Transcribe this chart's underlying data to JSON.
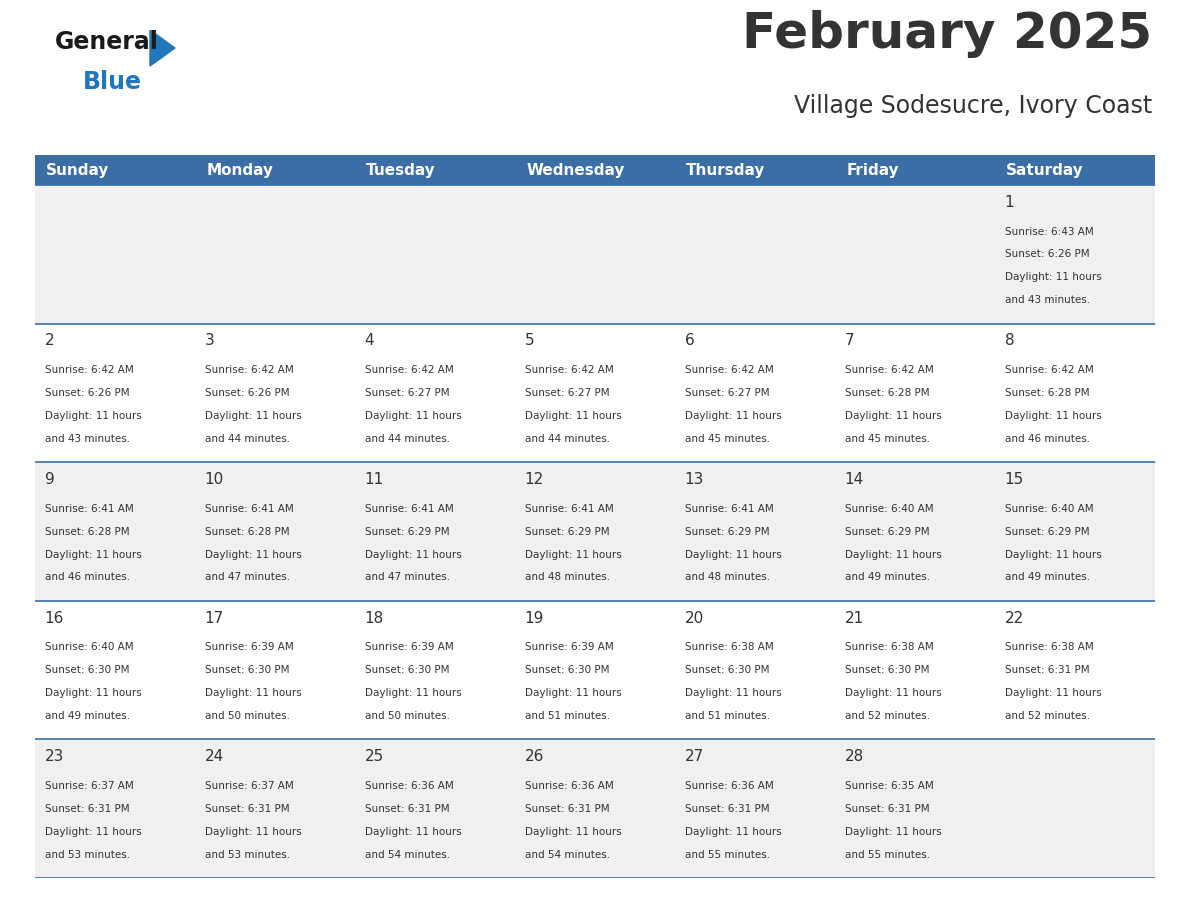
{
  "title": "February 2025",
  "subtitle": "Village Sodesucre, Ivory Coast",
  "header_bg": "#3a6ea5",
  "header_text_color": "#ffffff",
  "grid_line_color": "#3a6ea5",
  "day_headers": [
    "Sunday",
    "Monday",
    "Tuesday",
    "Wednesday",
    "Thursday",
    "Friday",
    "Saturday"
  ],
  "bg_color": "#ffffff",
  "alt_row_color": "#f0f0f0",
  "cell_text_color": "#333333",
  "days": [
    {
      "day": 1,
      "col": 6,
      "row": 0,
      "sunrise": "6:43 AM",
      "sunset": "6:26 PM",
      "daylight_hours": 11,
      "daylight_minutes": 43
    },
    {
      "day": 2,
      "col": 0,
      "row": 1,
      "sunrise": "6:42 AM",
      "sunset": "6:26 PM",
      "daylight_hours": 11,
      "daylight_minutes": 43
    },
    {
      "day": 3,
      "col": 1,
      "row": 1,
      "sunrise": "6:42 AM",
      "sunset": "6:26 PM",
      "daylight_hours": 11,
      "daylight_minutes": 44
    },
    {
      "day": 4,
      "col": 2,
      "row": 1,
      "sunrise": "6:42 AM",
      "sunset": "6:27 PM",
      "daylight_hours": 11,
      "daylight_minutes": 44
    },
    {
      "day": 5,
      "col": 3,
      "row": 1,
      "sunrise": "6:42 AM",
      "sunset": "6:27 PM",
      "daylight_hours": 11,
      "daylight_minutes": 44
    },
    {
      "day": 6,
      "col": 4,
      "row": 1,
      "sunrise": "6:42 AM",
      "sunset": "6:27 PM",
      "daylight_hours": 11,
      "daylight_minutes": 45
    },
    {
      "day": 7,
      "col": 5,
      "row": 1,
      "sunrise": "6:42 AM",
      "sunset": "6:28 PM",
      "daylight_hours": 11,
      "daylight_minutes": 45
    },
    {
      "day": 8,
      "col": 6,
      "row": 1,
      "sunrise": "6:42 AM",
      "sunset": "6:28 PM",
      "daylight_hours": 11,
      "daylight_minutes": 46
    },
    {
      "day": 9,
      "col": 0,
      "row": 2,
      "sunrise": "6:41 AM",
      "sunset": "6:28 PM",
      "daylight_hours": 11,
      "daylight_minutes": 46
    },
    {
      "day": 10,
      "col": 1,
      "row": 2,
      "sunrise": "6:41 AM",
      "sunset": "6:28 PM",
      "daylight_hours": 11,
      "daylight_minutes": 47
    },
    {
      "day": 11,
      "col": 2,
      "row": 2,
      "sunrise": "6:41 AM",
      "sunset": "6:29 PM",
      "daylight_hours": 11,
      "daylight_minutes": 47
    },
    {
      "day": 12,
      "col": 3,
      "row": 2,
      "sunrise": "6:41 AM",
      "sunset": "6:29 PM",
      "daylight_hours": 11,
      "daylight_minutes": 48
    },
    {
      "day": 13,
      "col": 4,
      "row": 2,
      "sunrise": "6:41 AM",
      "sunset": "6:29 PM",
      "daylight_hours": 11,
      "daylight_minutes": 48
    },
    {
      "day": 14,
      "col": 5,
      "row": 2,
      "sunrise": "6:40 AM",
      "sunset": "6:29 PM",
      "daylight_hours": 11,
      "daylight_minutes": 49
    },
    {
      "day": 15,
      "col": 6,
      "row": 2,
      "sunrise": "6:40 AM",
      "sunset": "6:29 PM",
      "daylight_hours": 11,
      "daylight_minutes": 49
    },
    {
      "day": 16,
      "col": 0,
      "row": 3,
      "sunrise": "6:40 AM",
      "sunset": "6:30 PM",
      "daylight_hours": 11,
      "daylight_minutes": 49
    },
    {
      "day": 17,
      "col": 1,
      "row": 3,
      "sunrise": "6:39 AM",
      "sunset": "6:30 PM",
      "daylight_hours": 11,
      "daylight_minutes": 50
    },
    {
      "day": 18,
      "col": 2,
      "row": 3,
      "sunrise": "6:39 AM",
      "sunset": "6:30 PM",
      "daylight_hours": 11,
      "daylight_minutes": 50
    },
    {
      "day": 19,
      "col": 3,
      "row": 3,
      "sunrise": "6:39 AM",
      "sunset": "6:30 PM",
      "daylight_hours": 11,
      "daylight_minutes": 51
    },
    {
      "day": 20,
      "col": 4,
      "row": 3,
      "sunrise": "6:38 AM",
      "sunset": "6:30 PM",
      "daylight_hours": 11,
      "daylight_minutes": 51
    },
    {
      "day": 21,
      "col": 5,
      "row": 3,
      "sunrise": "6:38 AM",
      "sunset": "6:30 PM",
      "daylight_hours": 11,
      "daylight_minutes": 52
    },
    {
      "day": 22,
      "col": 6,
      "row": 3,
      "sunrise": "6:38 AM",
      "sunset": "6:31 PM",
      "daylight_hours": 11,
      "daylight_minutes": 52
    },
    {
      "day": 23,
      "col": 0,
      "row": 4,
      "sunrise": "6:37 AM",
      "sunset": "6:31 PM",
      "daylight_hours": 11,
      "daylight_minutes": 53
    },
    {
      "day": 24,
      "col": 1,
      "row": 4,
      "sunrise": "6:37 AM",
      "sunset": "6:31 PM",
      "daylight_hours": 11,
      "daylight_minutes": 53
    },
    {
      "day": 25,
      "col": 2,
      "row": 4,
      "sunrise": "6:36 AM",
      "sunset": "6:31 PM",
      "daylight_hours": 11,
      "daylight_minutes": 54
    },
    {
      "day": 26,
      "col": 3,
      "row": 4,
      "sunrise": "6:36 AM",
      "sunset": "6:31 PM",
      "daylight_hours": 11,
      "daylight_minutes": 54
    },
    {
      "day": 27,
      "col": 4,
      "row": 4,
      "sunrise": "6:36 AM",
      "sunset": "6:31 PM",
      "daylight_hours": 11,
      "daylight_minutes": 55
    },
    {
      "day": 28,
      "col": 5,
      "row": 4,
      "sunrise": "6:35 AM",
      "sunset": "6:31 PM",
      "daylight_hours": 11,
      "daylight_minutes": 55
    }
  ],
  "num_rows": 5,
  "num_cols": 7,
  "logo_general_color": "#1a1a1a",
  "logo_blue_color": "#2077bb",
  "logo_triangle_color": "#2077bb",
  "title_fontsize": 36,
  "subtitle_fontsize": 17,
  "header_fontsize": 11,
  "day_num_fontsize": 11,
  "cell_fontsize": 7.5
}
